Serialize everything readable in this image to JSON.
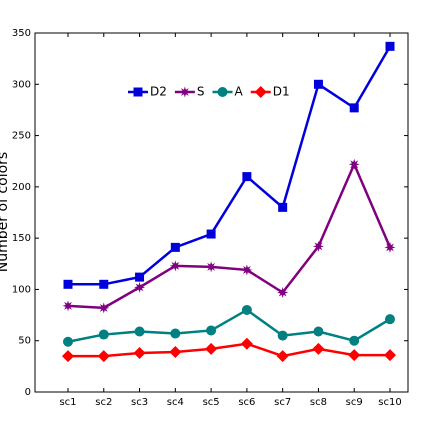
{
  "chart_data": {
    "type": "line",
    "y_label": "Number of colors",
    "categories": [
      "sc1",
      "sc2",
      "sc3",
      "sc4",
      "sc5",
      "sc6",
      "sc7",
      "sc8",
      "sc9",
      "sc10"
    ],
    "series": [
      {
        "name": "D2",
        "color": "#0000dd",
        "marker": "square",
        "values": [
          105,
          105,
          112,
          141,
          154,
          210,
          180,
          300,
          277,
          337
        ]
      },
      {
        "name": "S",
        "color": "#800080",
        "marker": "star",
        "values": [
          84,
          82,
          102,
          123,
          122,
          119,
          97,
          142,
          222,
          141
        ]
      },
      {
        "name": "A",
        "color": "#008080",
        "marker": "circle",
        "values": [
          49,
          56,
          59,
          57,
          60,
          80,
          55,
          59,
          50,
          71
        ]
      },
      {
        "name": "D1",
        "color": "#ff0000",
        "marker": "diamond",
        "values": [
          35,
          35,
          38,
          39,
          42,
          47,
          35,
          42,
          36,
          36
        ]
      }
    ],
    "ylim": [
      0,
      350
    ],
    "yticks": [
      0,
      50,
      100,
      150,
      200,
      250,
      300,
      350
    ],
    "grid": false,
    "legend": "top"
  }
}
